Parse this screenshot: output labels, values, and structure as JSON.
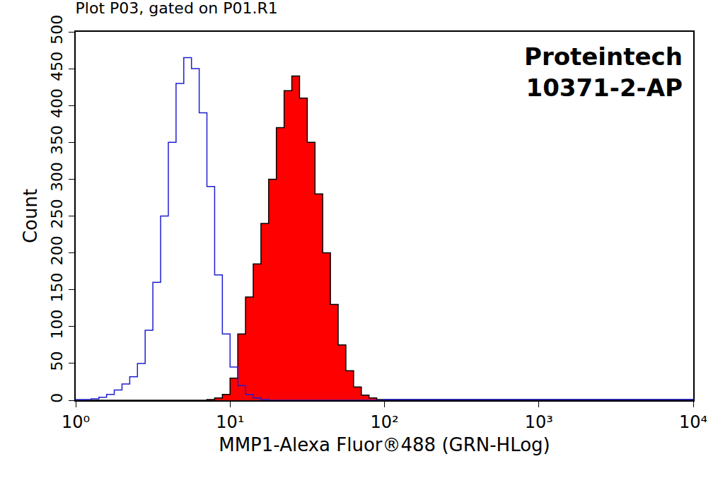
{
  "chart_data": {
    "type": "histogram",
    "title": "Plot P03, gated on P01.R1",
    "annotations": [
      "Proteintech",
      "10371-2-AP"
    ],
    "x_label": "MMP1-Alexa Fluor®488 (GRN-HLog)",
    "y_label": "Count",
    "log": "x",
    "grid": false,
    "bins": [
      1,
      1.122,
      1.259,
      1.413,
      1.585,
      1.778,
      1.995,
      2.239,
      2.512,
      2.818,
      3.162,
      3.548,
      3.981,
      4.467,
      5.012,
      5.623,
      6.31,
      7.079,
      7.943,
      8.913,
      10,
      11.22,
      12.59,
      14.13,
      15.85,
      17.78,
      19.95,
      22.39,
      25.12,
      28.18,
      31.62,
      35.48,
      39.81,
      44.67,
      50.12,
      56.23,
      63.1,
      70.79,
      79.43,
      89.13,
      100,
      1000,
      10000
    ],
    "series": [
      {
        "type": "line",
        "color": "#1f1fd0",
        "values": [
          1,
          1,
          2,
          4,
          8,
          14,
          22,
          32,
          50,
          95,
          160,
          250,
          350,
          430,
          465,
          450,
          390,
          290,
          170,
          90,
          45,
          20,
          8,
          3,
          1,
          0,
          0,
          0,
          0,
          0,
          0,
          0,
          0,
          0,
          0,
          0,
          0,
          0,
          0,
          0,
          1,
          1
        ]
      },
      {
        "type": "area",
        "color": "#ff0000",
        "values": [
          0,
          0,
          0,
          0,
          0,
          0,
          0,
          0,
          0,
          0,
          0,
          0,
          0,
          0,
          0,
          0,
          0,
          1,
          3,
          8,
          30,
          90,
          140,
          185,
          240,
          300,
          370,
          420,
          440,
          410,
          350,
          280,
          200,
          130,
          75,
          40,
          18,
          7,
          3,
          1,
          1,
          1
        ]
      }
    ],
    "xlim": [
      1,
      10000
    ],
    "xticks": [
      {
        "value": 1,
        "label": "10⁰"
      },
      {
        "value": 10,
        "label": "10¹"
      },
      {
        "value": 100,
        "label": "10²"
      },
      {
        "value": 1000,
        "label": "10³"
      },
      {
        "value": 10000,
        "label": "10⁴"
      }
    ],
    "ylim": [
      0,
      500
    ],
    "yticks": [
      0,
      50,
      100,
      150,
      200,
      250,
      300,
      350,
      400,
      450,
      500
    ]
  }
}
